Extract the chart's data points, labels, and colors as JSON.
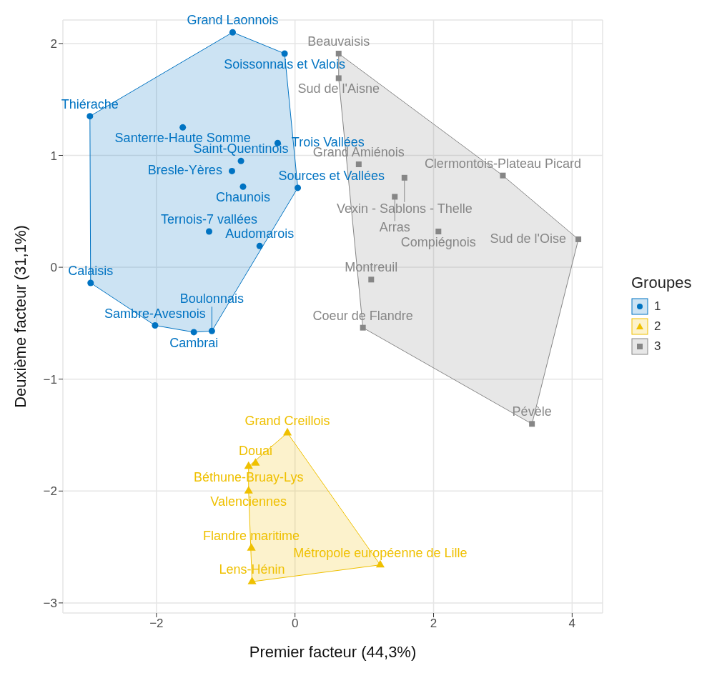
{
  "chart_data": {
    "type": "scatter",
    "xlabel": "Premier facteur (44,3%)",
    "ylabel": "Deuxième facteur (31,1%)",
    "legend_title": "Groupes",
    "legend": "right",
    "grid": true,
    "xlim": [
      -3.35,
      4.44
    ],
    "xticks": [
      -2,
      0,
      2,
      4
    ],
    "ylim": [
      -3.09,
      2.21
    ],
    "yticks": [
      -3,
      -2,
      -1,
      0,
      1,
      2
    ],
    "series": [
      {
        "name": "1",
        "color": "#0073c2",
        "marker": "circle",
        "x": [
          -0.9,
          -0.15,
          -2.96,
          -1.62,
          -0.25,
          -0.78,
          -0.91,
          -0.75,
          0.04,
          -1.24,
          -0.51,
          -2.95,
          -2.02,
          -1.46,
          -1.2
        ],
        "values": [
          2.1,
          1.91,
          1.35,
          1.25,
          1.11,
          0.95,
          0.86,
          0.72,
          0.71,
          0.32,
          0.19,
          -0.14,
          -0.52,
          -0.58,
          -0.57
        ],
        "value_labels": [
          "Grand Laonnois",
          "Soissonnais et Valois",
          "Thiérache",
          "Santerre-Haute Somme",
          "Trois Vallées",
          "Saint-Quentinois",
          "Bresle-Yères",
          "Chaunois",
          "Sources et Vallées",
          "Ternois-7 vallées",
          "Audomarois",
          "Calaisis",
          "Sambre-Avesnois",
          "Cambrai",
          "Boulonnais"
        ]
      },
      {
        "name": "2",
        "color": "#efc000",
        "marker": "triangle",
        "x": [
          -0.11,
          -0.57,
          -0.67,
          -0.67,
          -0.63,
          1.23,
          -0.62
        ],
        "values": [
          -1.48,
          -1.75,
          -1.78,
          -2.0,
          -2.51,
          -2.66,
          -2.81
        ],
        "value_labels": [
          "Grand Creillois",
          "Douai",
          "Béthune-Bruay-Lys",
          "Valenciennes",
          "Flandre maritime",
          "Métropole européenne de Lille",
          "Lens-Hénin"
        ]
      },
      {
        "name": "3",
        "color": "#868686",
        "marker": "square",
        "x": [
          0.63,
          0.63,
          0.92,
          3.0,
          1.58,
          1.44,
          4.09,
          2.07,
          1.1,
          0.98,
          3.42
        ],
        "values": [
          1.91,
          1.69,
          0.92,
          0.82,
          0.8,
          0.63,
          0.25,
          0.32,
          -0.11,
          -0.54,
          -1.4
        ],
        "value_labels": [
          "Beauvaisis",
          "Sud de l'Aisne",
          "Grand Amiénois",
          "Clermontois-Plateau Picard",
          "Vexin - Sablons - Thelle",
          "Arras",
          "Sud de l'Oise",
          "Compiégnois",
          "Montreuil",
          "Coeur de Flandre",
          "Pévèle"
        ]
      }
    ]
  }
}
